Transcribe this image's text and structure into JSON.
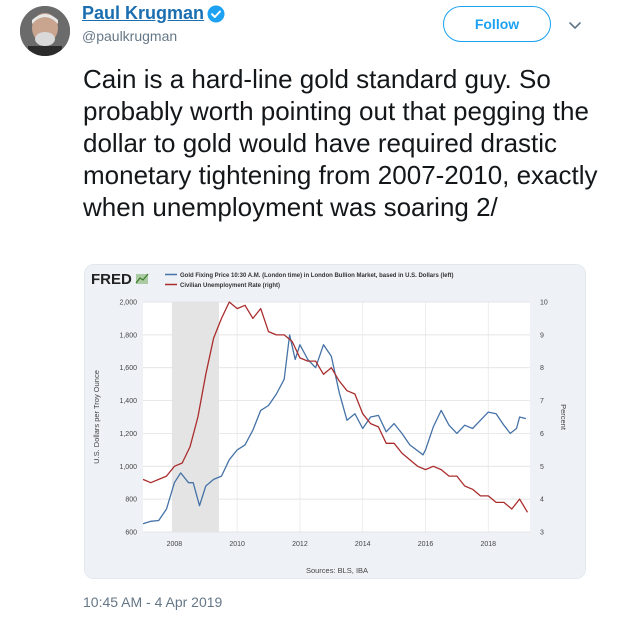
{
  "author": {
    "name": "Paul Krugman",
    "handle": "@paulkrugman",
    "verified": true
  },
  "follow_label": "Follow",
  "tweet_text": "Cain is a hard-line gold standard guy. So probably worth pointing out that pegging the dollar to gold would have required drastic monetary tightening from 2007-2010, exactly when unemployment was soaring 2/",
  "timestamp": "10:45 AM - 4 Apr 2019",
  "icons": {
    "verified": "verified-badge-icon",
    "caret": "chevron-down-icon",
    "avatar": "avatar"
  },
  "colors": {
    "link": "#1b6fb1",
    "accent": "#1da1f2",
    "gold_series": "#4572a7",
    "unemployment_series": "#aa2d2d",
    "recession_shade": "#e4e4e4"
  },
  "chart_data": {
    "type": "line",
    "logo": "FRED",
    "legend": [
      "Gold Fixing Price 10:30 A.M. (London time) in London Bullion Market, based in U.S. Dollars (left)",
      "Civilian Unemployment Rate (right)"
    ],
    "ylabel": "U.S. Dollars per Troy Ounce",
    "ylabel_right": "Percent",
    "source": "Sources: BLS, IBA",
    "xlim": [
      2007.0,
      2019.33
    ],
    "ylim": [
      600,
      2000
    ],
    "ylim_right": [
      3,
      10
    ],
    "xticks": [
      2008,
      2010,
      2012,
      2014,
      2016,
      2018
    ],
    "yticks": [
      600,
      800,
      1000,
      1200,
      1400,
      1600,
      1800,
      2000
    ],
    "yticks_right": [
      3,
      4,
      5,
      6,
      7,
      8,
      9,
      10
    ],
    "recession": [
      2007.92,
      2009.42
    ],
    "grid": true,
    "series": [
      {
        "name": "Gold Fixing Price 10:30 A.M. (London time) in London Bullion Market, based in U.S. Dollars (left)",
        "axis": "left",
        "x": [
          2007.0,
          2007.25,
          2007.5,
          2007.75,
          2008.0,
          2008.2,
          2008.45,
          2008.6,
          2008.8,
          2009.0,
          2009.25,
          2009.5,
          2009.75,
          2010.0,
          2010.25,
          2010.5,
          2010.75,
          2011.0,
          2011.25,
          2011.5,
          2011.67,
          2011.85,
          2012.0,
          2012.25,
          2012.5,
          2012.75,
          2013.0,
          2013.25,
          2013.5,
          2013.75,
          2014.0,
          2014.25,
          2014.5,
          2014.75,
          2015.0,
          2015.25,
          2015.5,
          2015.92,
          2016.0,
          2016.25,
          2016.5,
          2016.75,
          2017.0,
          2017.25,
          2017.5,
          2017.75,
          2018.0,
          2018.25,
          2018.5,
          2018.7,
          2018.9,
          2019.0,
          2019.2
        ],
        "values": [
          650,
          665,
          670,
          740,
          900,
          960,
          900,
          900,
          760,
          880,
          920,
          940,
          1040,
          1100,
          1130,
          1220,
          1340,
          1370,
          1440,
          1530,
          1800,
          1650,
          1740,
          1650,
          1600,
          1740,
          1670,
          1450,
          1280,
          1320,
          1230,
          1300,
          1310,
          1210,
          1260,
          1200,
          1130,
          1070,
          1100,
          1240,
          1340,
          1250,
          1200,
          1250,
          1230,
          1280,
          1330,
          1320,
          1250,
          1200,
          1230,
          1300,
          1290
        ]
      },
      {
        "name": "Civilian Unemployment Rate (right)",
        "axis": "right",
        "x": [
          2007.0,
          2007.25,
          2007.5,
          2007.75,
          2008.0,
          2008.25,
          2008.5,
          2008.75,
          2009.0,
          2009.25,
          2009.5,
          2009.75,
          2010.0,
          2010.25,
          2010.5,
          2010.75,
          2011.0,
          2011.25,
          2011.5,
          2011.75,
          2012.0,
          2012.25,
          2012.5,
          2012.75,
          2013.0,
          2013.25,
          2013.5,
          2013.75,
          2014.0,
          2014.25,
          2014.5,
          2014.75,
          2015.0,
          2015.25,
          2015.5,
          2015.75,
          2016.0,
          2016.25,
          2016.5,
          2016.75,
          2017.0,
          2017.25,
          2017.5,
          2017.75,
          2018.0,
          2018.25,
          2018.5,
          2018.75,
          2019.0,
          2019.25
        ],
        "values": [
          4.6,
          4.5,
          4.6,
          4.7,
          5.0,
          5.1,
          5.6,
          6.5,
          7.8,
          8.9,
          9.5,
          10.0,
          9.8,
          9.9,
          9.5,
          9.8,
          9.1,
          9.0,
          9.0,
          8.8,
          8.3,
          8.2,
          8.2,
          7.8,
          8.0,
          7.6,
          7.3,
          7.2,
          6.6,
          6.3,
          6.2,
          5.7,
          5.7,
          5.4,
          5.2,
          5.0,
          4.9,
          5.0,
          4.9,
          4.7,
          4.7,
          4.4,
          4.3,
          4.1,
          4.1,
          3.9,
          3.9,
          3.7,
          4.0,
          3.6
        ]
      }
    ]
  }
}
